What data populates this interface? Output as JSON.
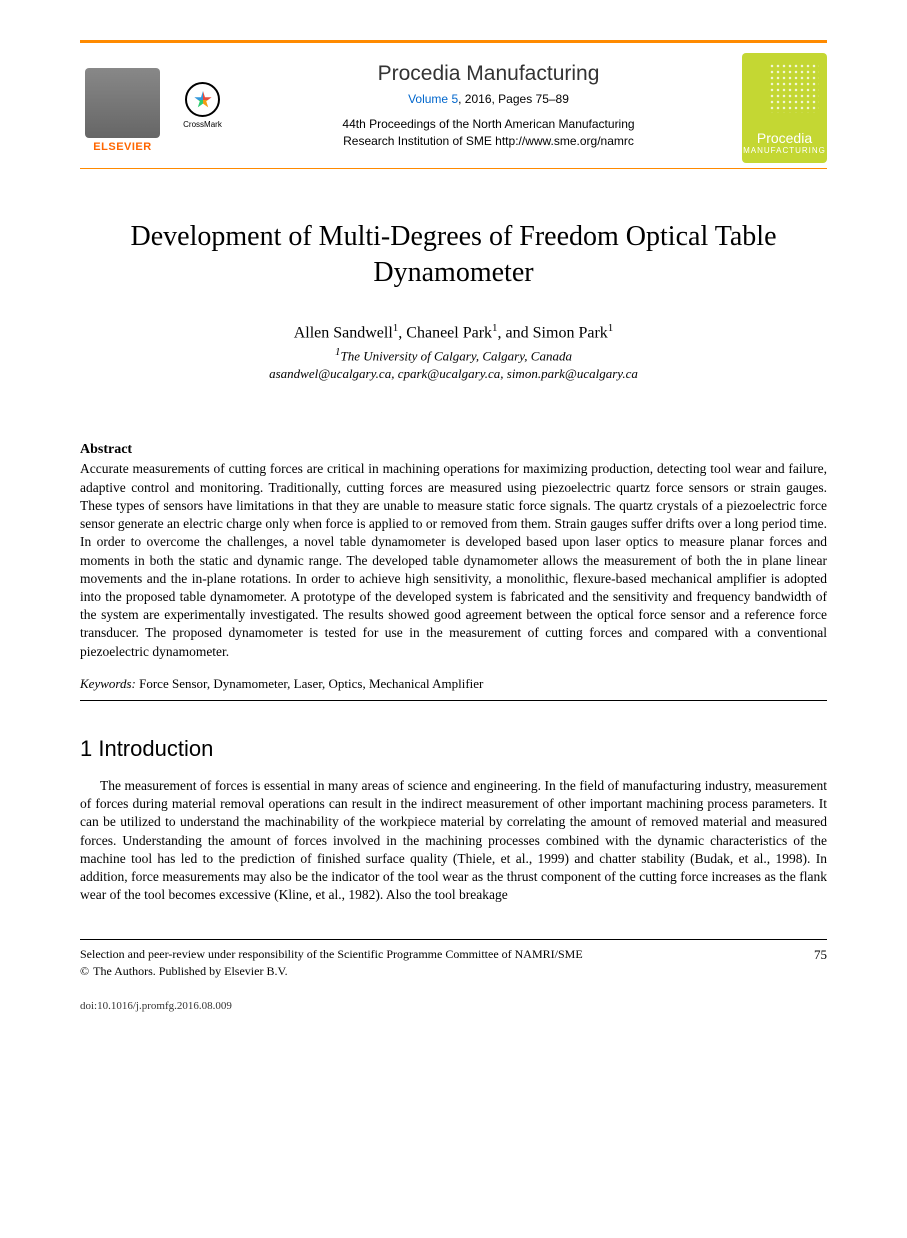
{
  "header": {
    "elsevier_label": "ELSEVIER",
    "crossmark_label": "CrossMark",
    "journal_name": "Procedia Manufacturing",
    "volume_link": "Volume 5",
    "year": "2016",
    "pages": "Pages 75–89",
    "conference_line1": "44th Proceedings of the North American Manufacturing",
    "conference_line2": "Research Institution of SME http://www.sme.org/namrc",
    "badge_title": "Procedia",
    "badge_subtitle": "MANUFACTURING"
  },
  "title": "Development of Multi-Degrees of Freedom Optical Table Dynamometer",
  "authors": {
    "a1": "Allen Sandwell",
    "a2": "Chaneel Park",
    "a3": "Simon Park",
    "sup": "1"
  },
  "affiliation": {
    "sup": "1",
    "text": "The University of Calgary, Calgary, Canada"
  },
  "emails": "asandwel@ucalgary.ca, cpark@ucalgary.ca, simon.park@ucalgary.ca",
  "abstract": {
    "heading": "Abstract",
    "body": "Accurate measurements of cutting forces are critical in machining operations for maximizing production, detecting tool wear and failure, adaptive control and monitoring. Traditionally, cutting forces are measured using piezoelectric quartz force sensors or strain gauges. These types of sensors have limitations in that they are unable to measure static force signals. The quartz crystals of a piezoelectric force sensor generate an electric charge only when force is applied to or removed from them. Strain gauges suffer drifts over a long period time. In order to overcome the challenges, a novel table dynamometer is developed based upon laser optics to measure planar forces and moments in both the static and dynamic range. The developed table dynamometer allows the measurement of both the in plane linear movements and the in-plane rotations. In order to achieve high sensitivity, a monolithic, flexure-based mechanical amplifier is adopted into the proposed table dynamometer. A prototype of the developed system is fabricated and the sensitivity and frequency bandwidth of the system are experimentally investigated. The results showed good agreement between the optical force sensor and a reference force transducer. The proposed dynamometer is tested for use in the measurement of cutting forces and compared with a conventional piezoelectric dynamometer."
  },
  "keywords": {
    "label": "Keywords:",
    "list": "Force Sensor, Dynamometer, Laser, Optics, Mechanical Amplifier"
  },
  "section1": {
    "heading": "1  Introduction",
    "body": "The measurement of forces is essential in many areas of science and engineering. In the field of manufacturing industry, measurement of forces during material removal operations can result in the indirect measurement of other important machining process parameters. It can be utilized to understand the machinability of the workpiece material by correlating the amount of removed material and measured forces. Understanding the amount of forces involved in the machining processes combined with the dynamic characteristics of the machine tool has led to the prediction of finished surface quality (Thiele, et al., 1999) and chatter stability (Budak, et al., 1998). In addition, force measurements may also be the indicator of the tool wear as the thrust component of the cutting force increases as the flank wear of the tool becomes excessive (Kline, et al., 1982). Also the tool breakage"
  },
  "footer": {
    "selection": "Selection and peer-review under responsibility of the Scientific Programme Committee of NAMRI/SME",
    "copyright_symbol": "©",
    "copyright": "The Authors. Published by Elsevier B.V.",
    "page": "75",
    "doi": "doi:10.1016/j.promfg.2016.08.009"
  }
}
